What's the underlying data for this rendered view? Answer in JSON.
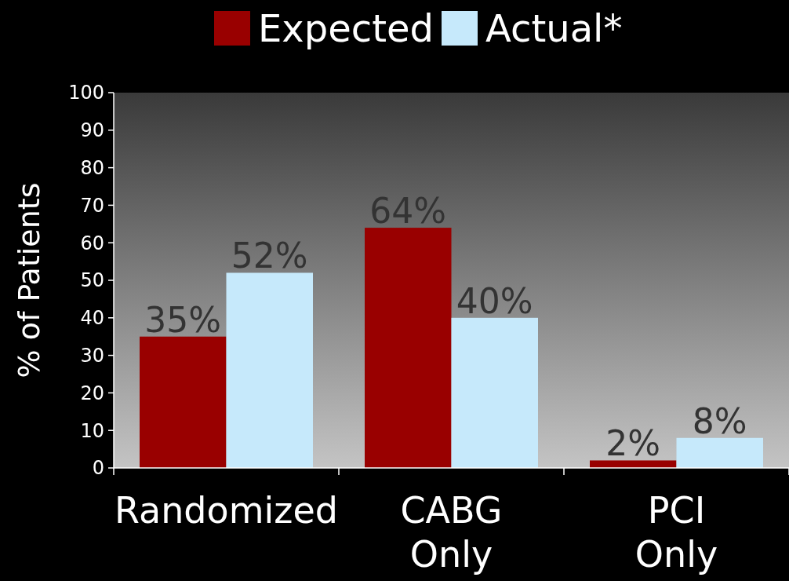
{
  "chart_data": {
    "type": "bar",
    "ylabel": "% of Patients",
    "categories": [
      "Randomized",
      "CABG Only",
      "PCI Only"
    ],
    "series": [
      {
        "name": "Expected",
        "color": "#990000",
        "values": [
          35,
          64,
          2
        ],
        "value_labels": [
          "35%",
          "64%",
          "2%"
        ]
      },
      {
        "name": "Actual*",
        "color": "#c6e9fb",
        "values": [
          52,
          40,
          8
        ],
        "value_labels": [
          "52%",
          "40%",
          "8%"
        ]
      }
    ],
    "ylim": [
      0,
      100
    ],
    "yticks": [
      0,
      10,
      20,
      30,
      40,
      50,
      60,
      70,
      80,
      90,
      100
    ],
    "legend": "top",
    "grid": false
  }
}
